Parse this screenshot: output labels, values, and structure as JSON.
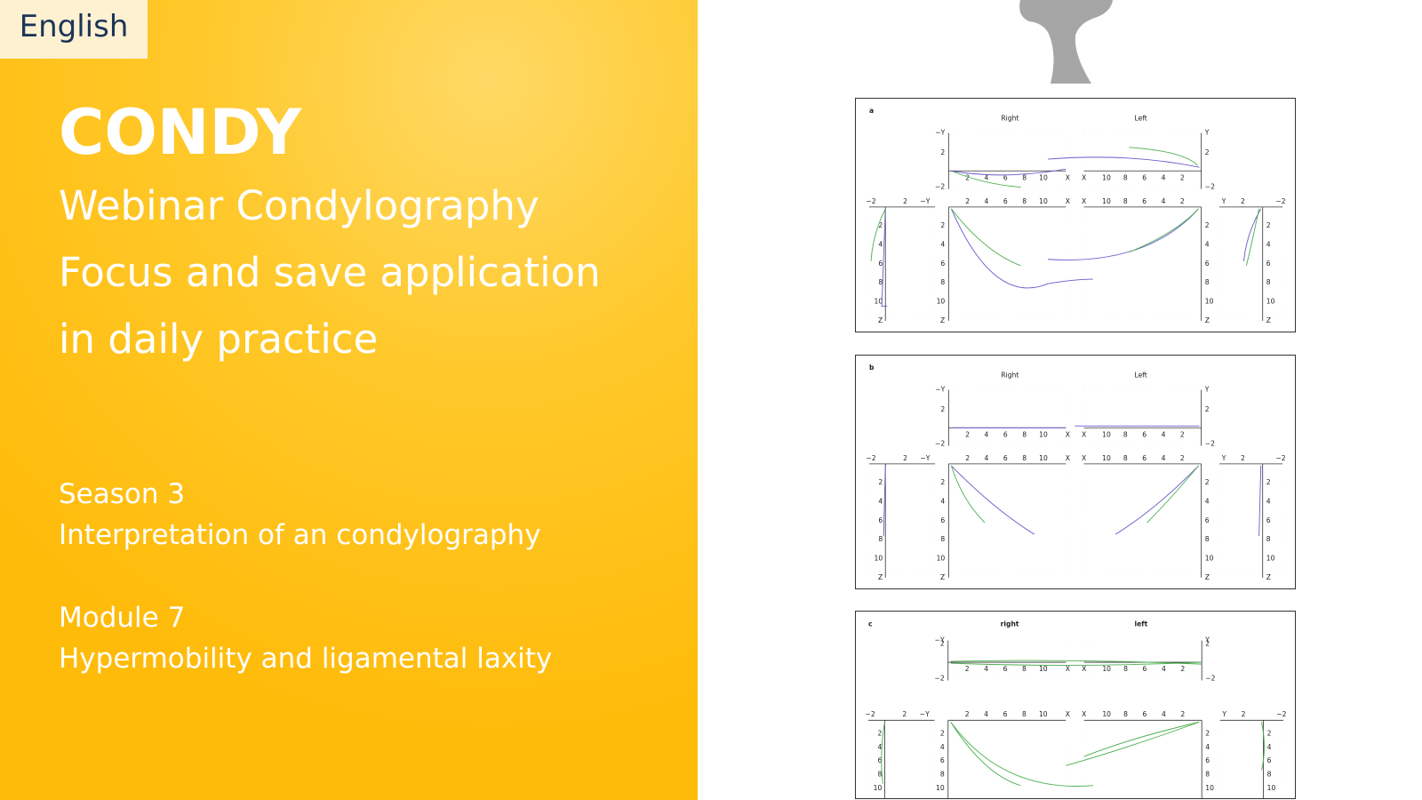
{
  "language": "English",
  "title": "CONDY",
  "subtitle_lines": [
    "Webinar Condylography",
    "Focus and save application",
    "in daily practice"
  ],
  "season": {
    "label": "Season 3",
    "topic": "Interpretation of an condylography"
  },
  "module": {
    "label": "Module 7",
    "topic": "Hypermobility and ligamental laxity"
  },
  "figure": {
    "panels": [
      {
        "label": "a",
        "right": "Right",
        "left": "Left"
      },
      {
        "label": "b",
        "right": "Right",
        "left": "Left"
      },
      {
        "label": "c",
        "right": "right",
        "left": "left"
      }
    ],
    "axes": {
      "ticks": [
        "2",
        "4",
        "6",
        "8",
        "10"
      ],
      "neg": "−2",
      "x": "X",
      "y": "Y",
      "neg_y": "−Y",
      "z": "Z"
    }
  }
}
